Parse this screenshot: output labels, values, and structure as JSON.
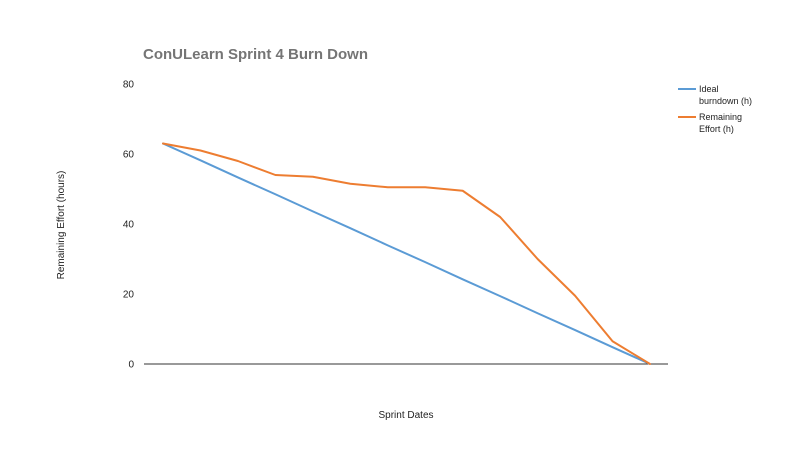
{
  "chart_data": {
    "type": "line",
    "title": "ConULearn Sprint 4 Burn Down",
    "xlabel": "Sprint Dates",
    "ylabel": "Remaining Effort (hours)",
    "ylim": [
      0,
      80
    ],
    "yticks": [
      "0",
      "20",
      "40",
      "60",
      "80"
    ],
    "grid": false,
    "legend_position": "right",
    "x": [
      1,
      2,
      3,
      4,
      5,
      6,
      7,
      8,
      9,
      10,
      11,
      12,
      13,
      14
    ],
    "series": [
      {
        "name": "Ideal burndown (h)",
        "color": "#5b9bd5",
        "legend_lines": [
          "Ideal",
          "burndown (h)"
        ],
        "values": [
          63,
          58.2,
          53.3,
          48.5,
          43.6,
          38.8,
          33.9,
          29.1,
          24.2,
          19.4,
          14.5,
          9.7,
          4.8,
          0
        ]
      },
      {
        "name": "Remaining Effort (h)",
        "color": "#ed7d31",
        "legend_lines": [
          "Remaining",
          "Effort (h)"
        ],
        "values": [
          63,
          61,
          58,
          54,
          53.5,
          51.5,
          50.5,
          50.5,
          49.5,
          42,
          30,
          19.5,
          6.5,
          0
        ]
      }
    ]
  }
}
